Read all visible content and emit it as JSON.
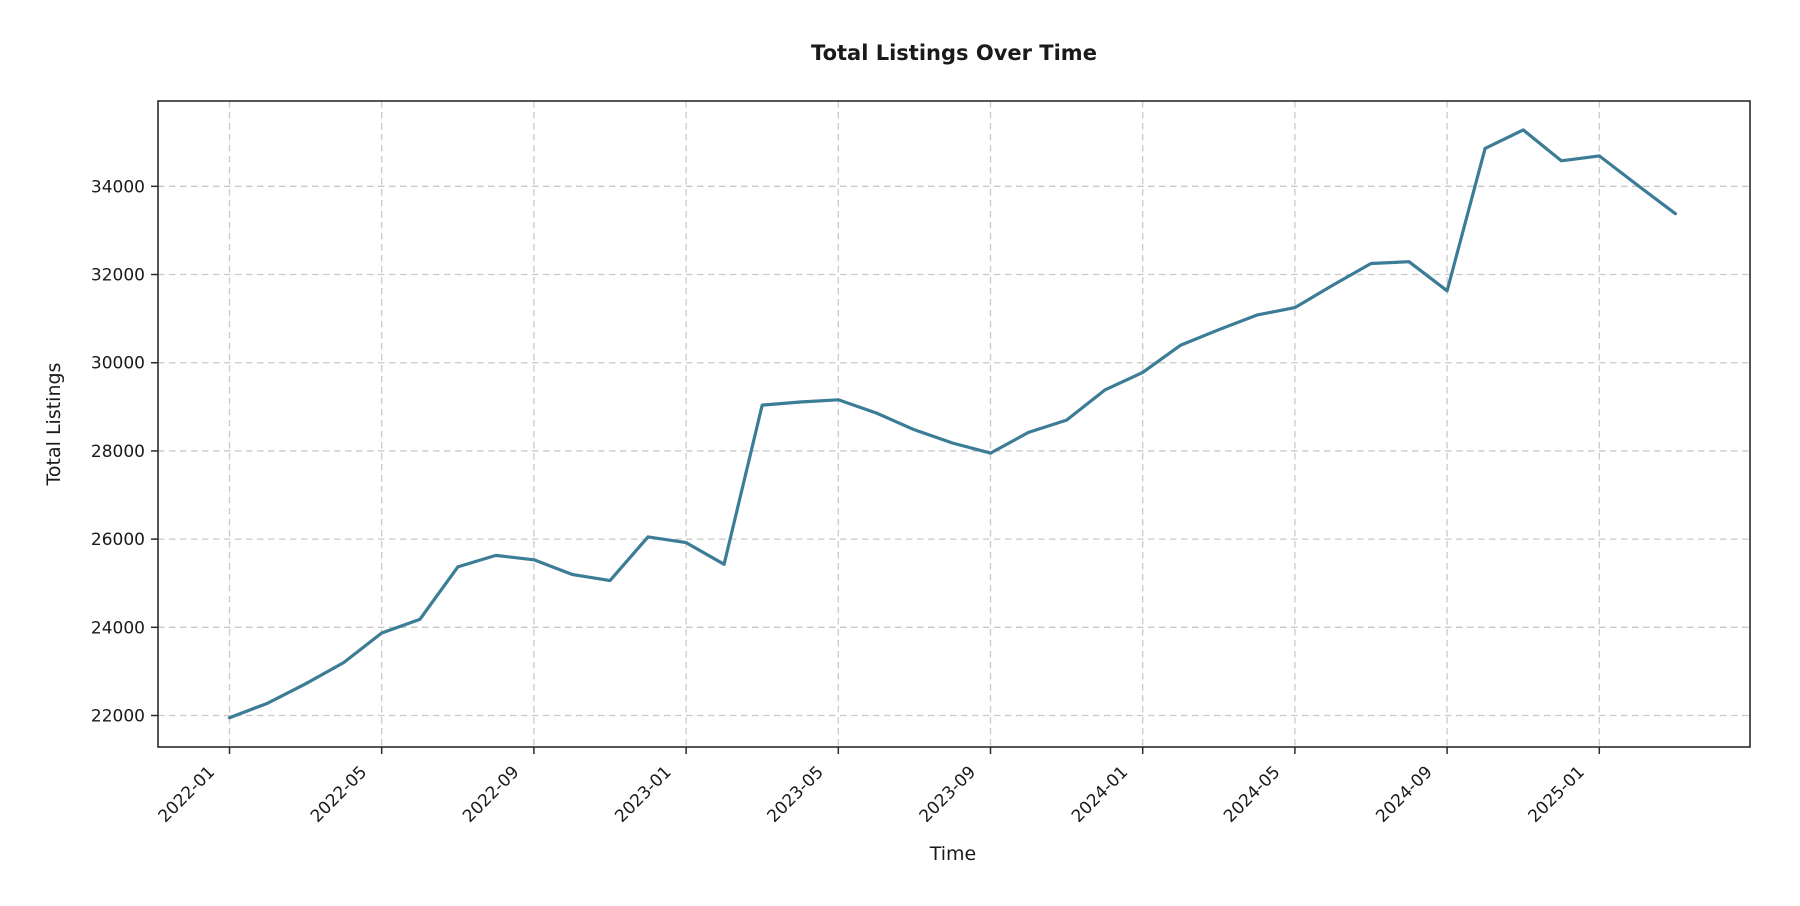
{
  "figure": {
    "background": "#ffffff"
  },
  "chart_data": {
    "type": "line",
    "title": "Total Listings Over Time",
    "xlabel": "Time",
    "ylabel": "Total Listings",
    "legend": "none",
    "grid": true,
    "grid_style": "dashed",
    "line_color": "#3B7C96",
    "grid_color": "#c9c9c9",
    "spine_color": "#2b2b2b",
    "x": [
      "2022-01",
      "2022-02",
      "2022-03",
      "2022-04",
      "2022-05",
      "2022-06",
      "2022-07",
      "2022-08",
      "2022-09",
      "2022-10",
      "2022-11",
      "2022-12",
      "2023-01",
      "2023-02",
      "2023-03",
      "2023-04",
      "2023-05",
      "2023-06",
      "2023-07",
      "2023-08",
      "2023-09",
      "2023-10",
      "2023-11",
      "2023-12",
      "2024-01",
      "2024-02",
      "2024-03",
      "2024-04",
      "2024-05",
      "2024-06",
      "2024-07",
      "2024-08",
      "2024-09",
      "2024-10",
      "2024-11",
      "2024-12",
      "2025-01",
      "2025-02",
      "2025-03"
    ],
    "values": [
      21950,
      22280,
      22720,
      23200,
      23870,
      24180,
      25370,
      25630,
      25530,
      25200,
      25060,
      26050,
      25920,
      25430,
      29040,
      29110,
      29160,
      28860,
      28480,
      28180,
      27950,
      28420,
      28700,
      29380,
      29780,
      30400,
      30750,
      31080,
      31250,
      31760,
      32250,
      32290,
      31630,
      34860,
      35280,
      34580,
      34690,
      34030,
      33380
    ],
    "x_tick_labels": [
      "2022-01",
      "2022-05",
      "2022-09",
      "2023-01",
      "2023-05",
      "2023-09",
      "2024-01",
      "2024-05",
      "2024-09",
      "2025-01"
    ],
    "x_tick_every": 4,
    "y_ticks": [
      22000,
      24000,
      26000,
      28000,
      30000,
      32000,
      34000
    ],
    "ylim": [
      21286,
      35935
    ],
    "x_tick_rotation_deg": 45
  }
}
